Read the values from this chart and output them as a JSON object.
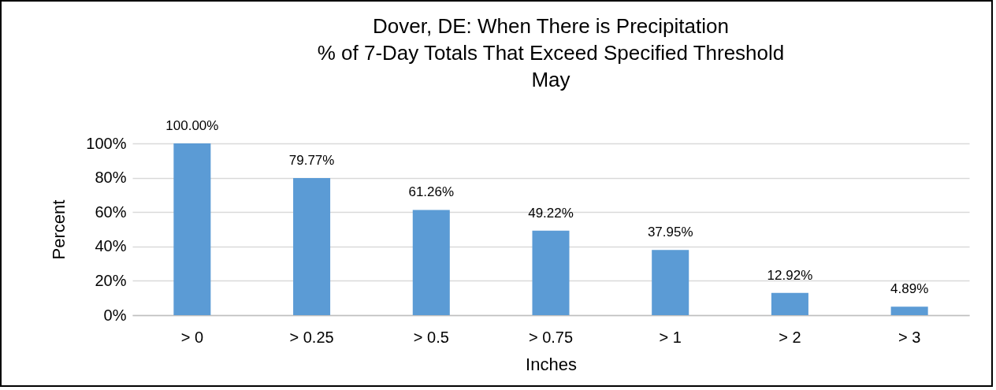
{
  "chart_data": {
    "type": "bar",
    "title": [
      "Dover, DE: When There is Precipitation",
      "% of 7-Day Totals That Exceed Specified Threshold",
      "May"
    ],
    "xlabel": "Inches",
    "ylabel": "Percent",
    "categories": [
      "> 0",
      "> 0.25",
      "> 0.5",
      "> 0.75",
      "> 1",
      "> 2",
      "> 3"
    ],
    "values": [
      100,
      79.77,
      61.26,
      49.22,
      37.95,
      12.92,
      4.89
    ],
    "value_labels": [
      "100.00%",
      "79.77%",
      "61.26%",
      "49.22%",
      "37.95%",
      "12.92%",
      "4.89%"
    ],
    "color": "#5b9bd5",
    "ylim": [
      0,
      100
    ],
    "yticks": [
      {
        "value": 0,
        "label": "0%"
      },
      {
        "value": 20,
        "label": "20%"
      },
      {
        "value": 40,
        "label": "40%"
      },
      {
        "value": 60,
        "label": "60%"
      },
      {
        "value": 80,
        "label": "80%"
      },
      {
        "value": 100,
        "label": "100%"
      }
    ],
    "grid": "y"
  }
}
